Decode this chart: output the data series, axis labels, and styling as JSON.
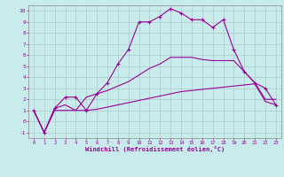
{
  "xlabel": "Windchill (Refroidissement éolien,°C)",
  "background_color": "#c8ecec",
  "grid_color": "#b0c8c8",
  "line_color": "#990099",
  "xlim": [
    -0.5,
    23.5
  ],
  "ylim": [
    -1.5,
    10.5
  ],
  "xticks": [
    0,
    1,
    2,
    3,
    4,
    5,
    6,
    7,
    8,
    9,
    10,
    11,
    12,
    13,
    14,
    15,
    16,
    17,
    18,
    19,
    20,
    21,
    22,
    23
  ],
  "yticks": [
    -1,
    0,
    1,
    2,
    3,
    4,
    5,
    6,
    7,
    8,
    9,
    10
  ],
  "series": [
    {
      "x": [
        0,
        1,
        2,
        3,
        4,
        5,
        6,
        7,
        8,
        9,
        10,
        11,
        12,
        13,
        14,
        15,
        16,
        17,
        18,
        19,
        20,
        21,
        22,
        23
      ],
      "y": [
        1,
        -1,
        1.0,
        1.0,
        1.0,
        1.0,
        1.1,
        1.3,
        1.5,
        1.7,
        1.9,
        2.1,
        2.3,
        2.5,
        2.7,
        2.8,
        2.9,
        3.0,
        3.1,
        3.2,
        3.3,
        3.4,
        1.8,
        1.5
      ],
      "marker": false
    },
    {
      "x": [
        0,
        1,
        2,
        3,
        4,
        5,
        6,
        7,
        8,
        9,
        10,
        11,
        12,
        13,
        14,
        15,
        16,
        17,
        18,
        19,
        20,
        21,
        22,
        23
      ],
      "y": [
        1,
        -1,
        1.2,
        1.5,
        1.0,
        2.2,
        2.5,
        2.8,
        3.2,
        3.6,
        4.2,
        4.8,
        5.2,
        5.8,
        5.8,
        5.8,
        5.6,
        5.5,
        5.5,
        5.5,
        4.5,
        3.5,
        2.0,
        2.0
      ],
      "marker": false
    },
    {
      "x": [
        0,
        1,
        2,
        3,
        4,
        5,
        6,
        7,
        8,
        9,
        10,
        11,
        12,
        13,
        14,
        15,
        16,
        17,
        18,
        19,
        20,
        21,
        22,
        23
      ],
      "y": [
        1,
        -1,
        1.2,
        2.2,
        2.2,
        1.0,
        2.5,
        3.5,
        5.2,
        6.5,
        9.0,
        9.0,
        9.5,
        10.2,
        9.8,
        9.2,
        9.2,
        8.5,
        9.2,
        6.5,
        4.5,
        3.5,
        3.0,
        1.5
      ],
      "marker": true
    }
  ]
}
